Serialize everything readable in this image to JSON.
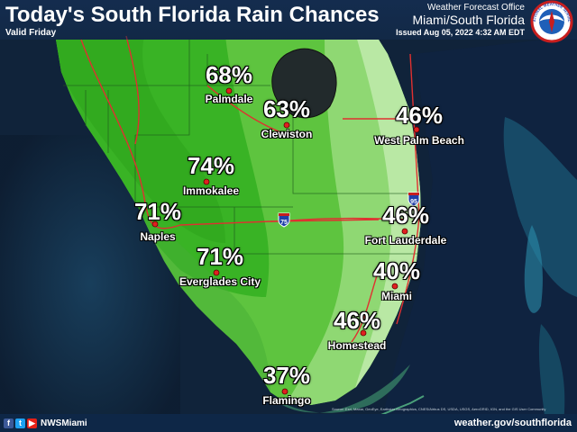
{
  "header": {
    "title": "Today's South Florida Rain Chances",
    "valid": "Valid Friday",
    "office_line1": "Weather Forecast Office",
    "office_line2": "Miami/South Florida",
    "issued": "Issued Aug 05, 2022 4:32 AM EDT"
  },
  "logo": {
    "icon": "nws-logo-icon",
    "text": "NATIONAL WEATHER SERVICE"
  },
  "highways": [
    {
      "label": "75",
      "icon": "interstate-shield-icon"
    },
    {
      "label": "95",
      "icon": "interstate-shield-icon"
    }
  ],
  "cities": [
    {
      "name": "Palmdale",
      "chance": "68%"
    },
    {
      "name": "Clewiston",
      "chance": "63%"
    },
    {
      "name": "West Palm Beach",
      "chance": "46%"
    },
    {
      "name": "Immokalee",
      "chance": "74%"
    },
    {
      "name": "Naples",
      "chance": "71%"
    },
    {
      "name": "Fort Lauderdale",
      "chance": "46%"
    },
    {
      "name": "Everglades City",
      "chance": "71%"
    },
    {
      "name": "Miami",
      "chance": "40%"
    },
    {
      "name": "Homestead",
      "chance": "46%"
    },
    {
      "name": "Flamingo",
      "chance": "37%"
    }
  ],
  "footer": {
    "handle": "NWSMiami",
    "website": "weather.gov/southflorida",
    "icons": [
      "facebook-icon",
      "twitter-icon",
      "youtube-icon"
    ],
    "credit": "Source: Esri, Maxar, GeoEye, Earthstar Geographics, CNES/Airbus DS, USDA, USGS, AeroGRID, IGN, and the GIS User Community"
  },
  "colors": {
    "dark_green": "#39b325",
    "mid_green": "#5ec43f",
    "light_green": "#8fd873",
    "pale_green": "#b9e8a4",
    "ocean": "#10233a",
    "city_dot": "#e02020",
    "highway": "#e03030"
  }
}
